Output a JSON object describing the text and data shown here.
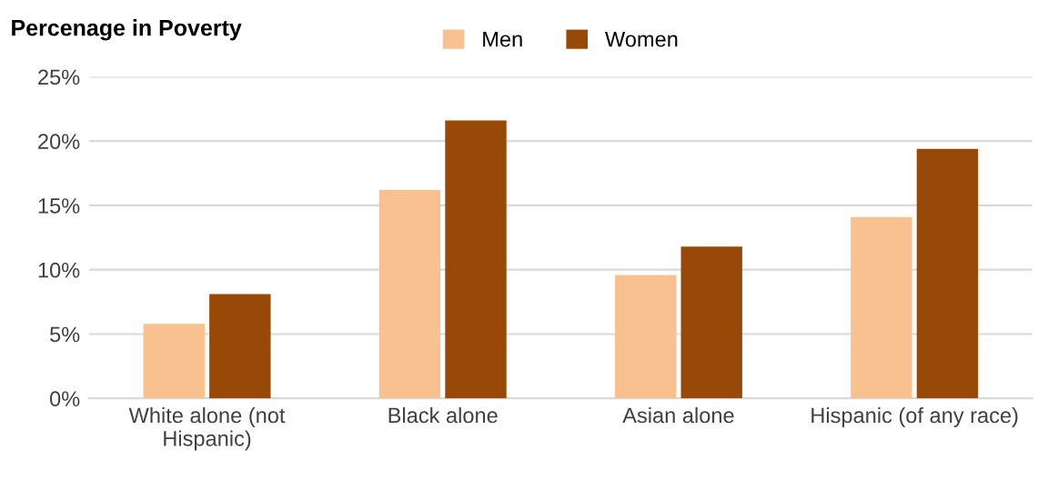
{
  "chart_data": {
    "type": "bar",
    "title": "Percenage in Poverty",
    "categories": [
      "White alone (not\nHispanic)",
      "Black alone",
      "Asian alone",
      "Hispanic (of any race)"
    ],
    "series": [
      {
        "name": "Men",
        "color": "#f9c18f",
        "values": [
          5.8,
          16.2,
          9.6,
          14.1
        ]
      },
      {
        "name": "Women",
        "color": "#984807",
        "values": [
          8.1,
          21.6,
          11.8,
          19.4
        ]
      }
    ],
    "ylim": [
      0,
      25
    ],
    "yticks": [
      {
        "value": 0,
        "label": "0%"
      },
      {
        "value": 5,
        "label": "5%"
      },
      {
        "value": 10,
        "label": "10%"
      },
      {
        "value": 15,
        "label": "15%"
      },
      {
        "value": 20,
        "label": "20%"
      },
      {
        "value": 25,
        "label": "25%"
      }
    ],
    "grid": "y",
    "legend": "top"
  }
}
